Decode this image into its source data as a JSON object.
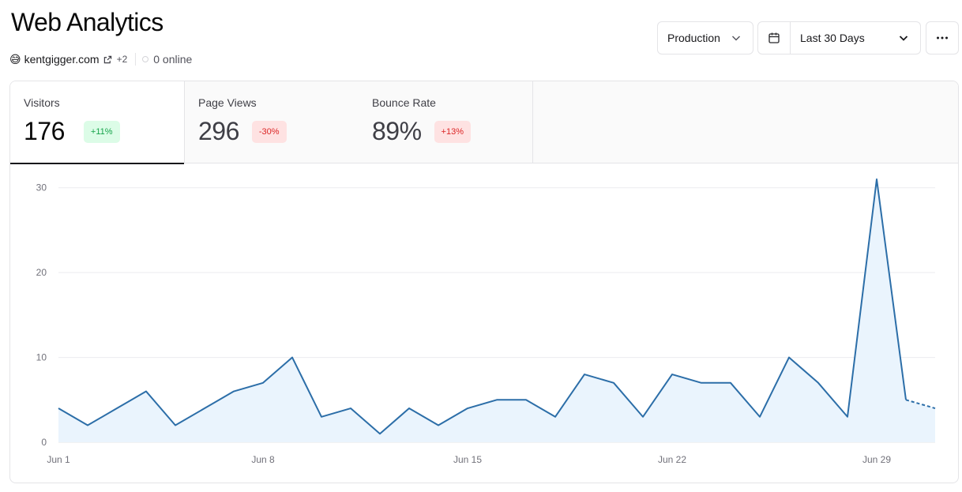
{
  "header": {
    "title": "Web Analytics",
    "site_emoji": "😅",
    "site": "kentgigger.com",
    "site_more": "+2",
    "online": "0 online"
  },
  "controls": {
    "environment": "Production",
    "date_range": "Last 30 Days"
  },
  "metrics": [
    {
      "label": "Visitors",
      "value": "176",
      "change": "+11%",
      "trend": "up",
      "active": true
    },
    {
      "label": "Page Views",
      "value": "296",
      "change": "-30%",
      "trend": "down",
      "active": false
    },
    {
      "label": "Bounce Rate",
      "value": "89%",
      "change": "+13%",
      "trend": "up-bad",
      "active": false
    }
  ],
  "colors": {
    "line": "#2c6ea8",
    "fill": "#eaf4fd",
    "positive": "#16a34a",
    "negative": "#dc2626"
  },
  "chart_data": {
    "type": "area",
    "x": [
      "Jun 1",
      "Jun 2",
      "Jun 3",
      "Jun 4",
      "Jun 5",
      "Jun 6",
      "Jun 7",
      "Jun 8",
      "Jun 9",
      "Jun 10",
      "Jun 11",
      "Jun 12",
      "Jun 13",
      "Jun 14",
      "Jun 15",
      "Jun 16",
      "Jun 17",
      "Jun 18",
      "Jun 19",
      "Jun 20",
      "Jun 21",
      "Jun 22",
      "Jun 23",
      "Jun 24",
      "Jun 25",
      "Jun 26",
      "Jun 27",
      "Jun 28",
      "Jun 29",
      "Jun 30",
      "Jul 1"
    ],
    "series": [
      {
        "values": [
          4,
          2,
          4,
          6,
          2,
          4,
          6,
          7,
          10,
          3,
          4,
          1,
          4,
          2,
          4,
          5,
          5,
          3,
          8,
          7,
          3,
          8,
          7,
          7,
          3,
          10,
          7,
          3,
          31,
          5,
          4
        ]
      }
    ],
    "projected_from_index": 29,
    "xticks": [
      "Jun 1",
      "Jun 8",
      "Jun 15",
      "Jun 22",
      "Jun 29"
    ],
    "yticks": [
      0,
      10,
      20,
      30
    ],
    "ylim": [
      0,
      31
    ],
    "grid": true
  }
}
